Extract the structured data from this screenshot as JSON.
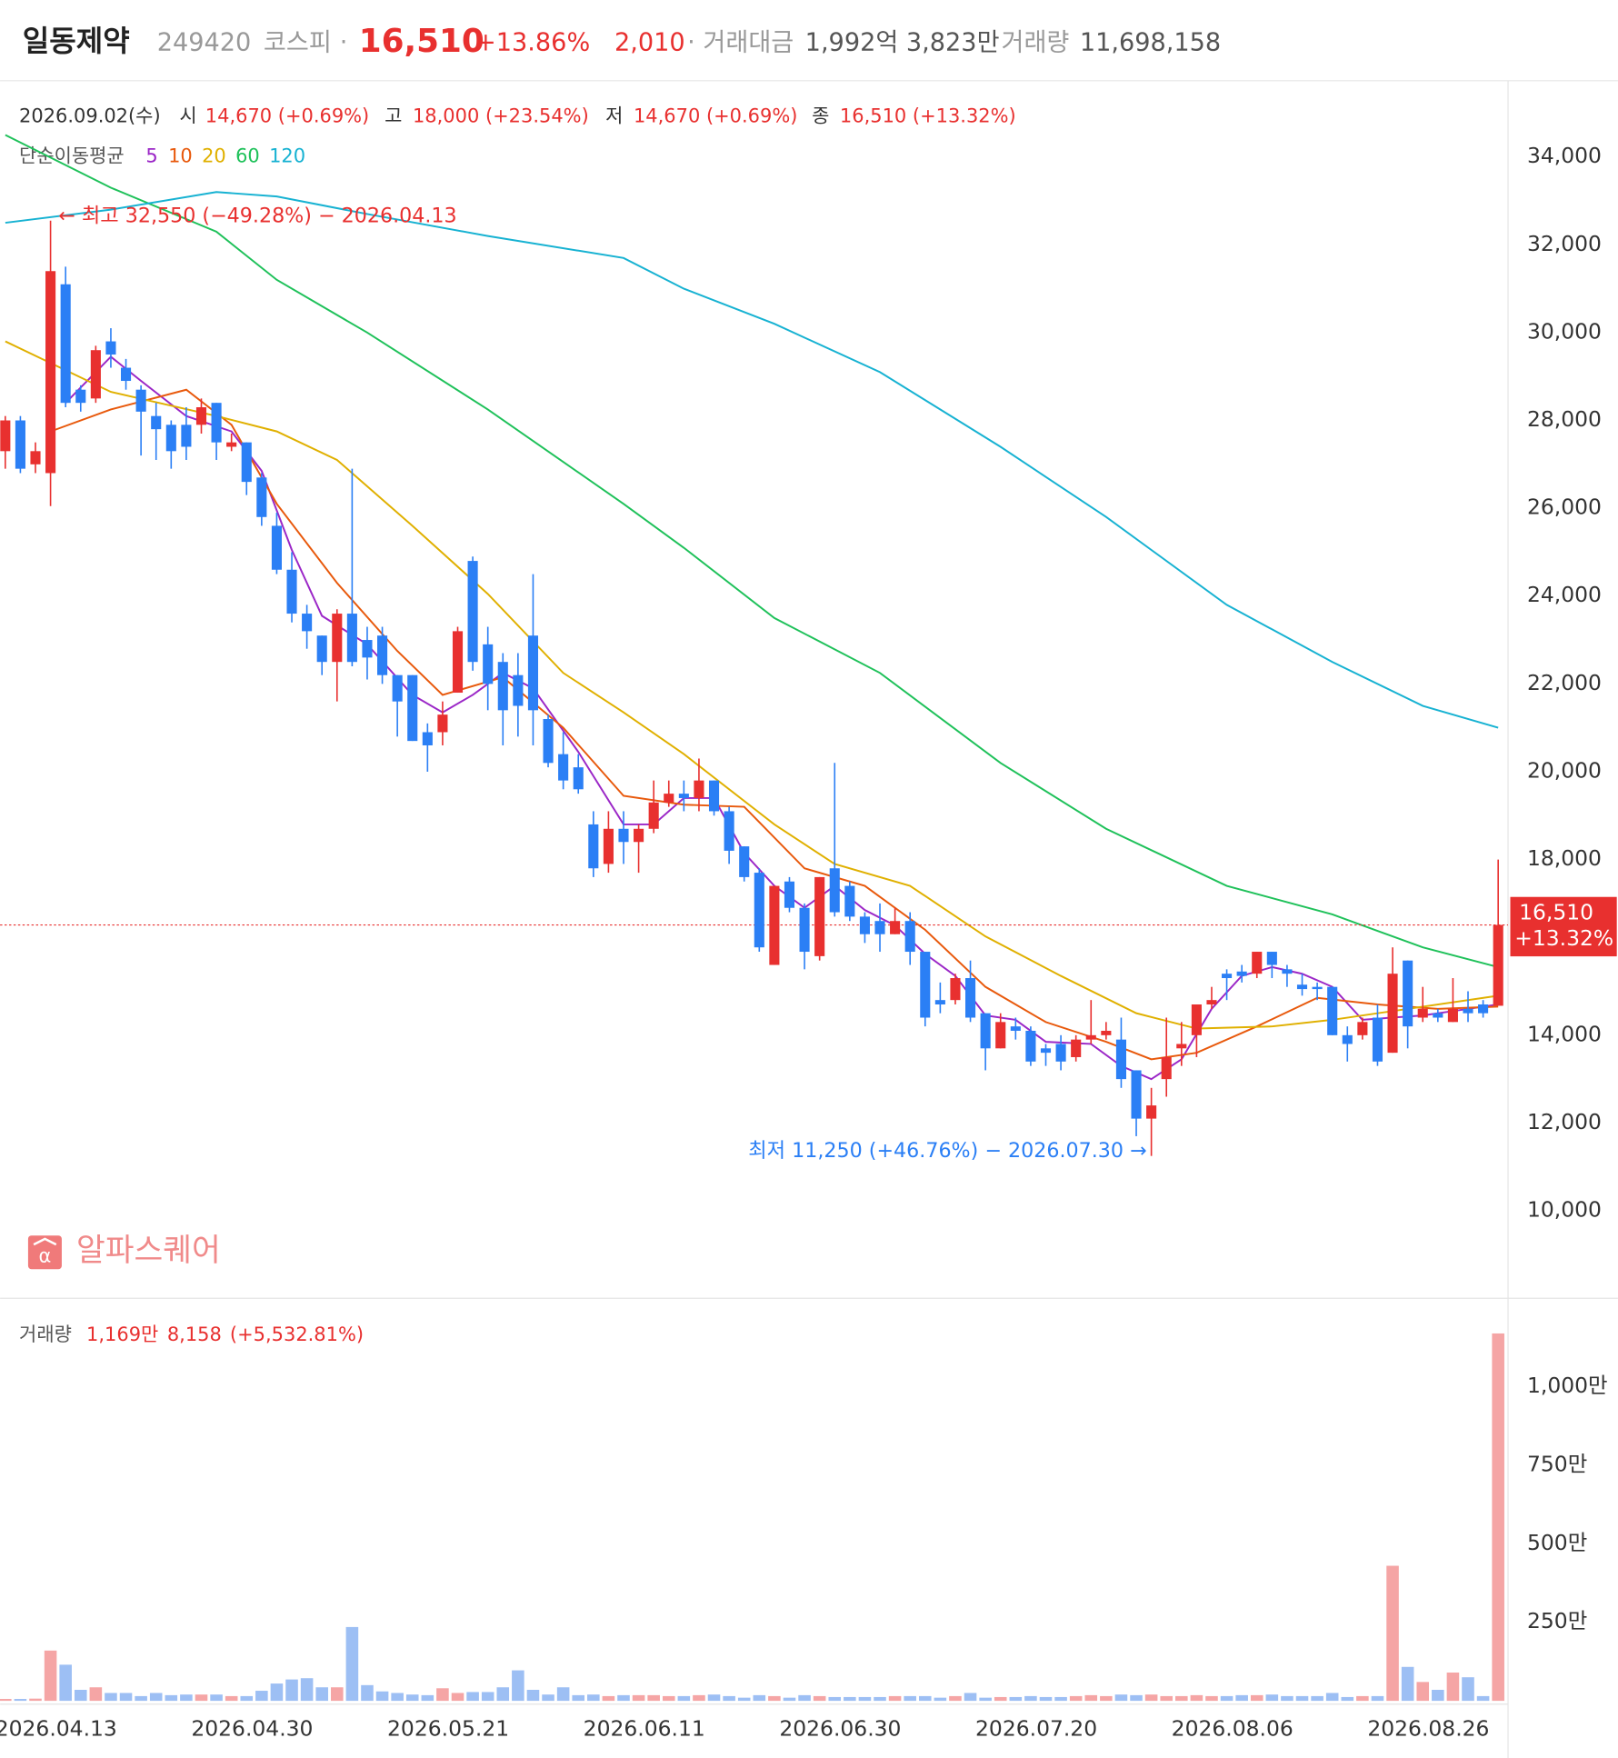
{
  "header": {
    "name": "일동제약",
    "code": "249420",
    "market": "코스피",
    "separator": "·",
    "price": "16,510",
    "change_pct": "+13.86%",
    "change": "2,010",
    "amount_label": "· 거래대금",
    "amount": "1,992억 3,823만",
    "volume_label": "거래량",
    "volume": "11,698,158"
  },
  "info": {
    "date": "2026.09.02(수)",
    "open_label": "시",
    "open": "14,670 (+0.69%)",
    "high_label": "고",
    "high": "18,000 (+23.54%)",
    "low_label": "저",
    "low": "14,670 (+0.69%)",
    "close_label": "종",
    "close": "16,510 (+13.32%)"
  },
  "watermark": "알파스퀘어",
  "chart_data": [
    {
      "type": "candlestick",
      "categories": [
        null,
        null,
        null,
        "2026.04.13",
        null,
        null,
        null,
        null,
        null,
        null,
        null,
        null,
        null,
        null,
        null,
        null,
        "2026.04.30",
        null,
        null,
        null,
        null,
        null,
        null,
        null,
        null,
        null,
        null,
        null,
        null,
        "2026.05.21",
        null,
        null,
        null,
        null,
        null,
        null,
        null,
        null,
        null,
        null,
        null,
        null,
        "2026.06.11",
        null,
        null,
        null,
        null,
        null,
        null,
        null,
        null,
        null,
        null,
        null,
        null,
        "2026.06.30",
        null,
        null,
        null,
        null,
        null,
        null,
        null,
        null,
        null,
        null,
        null,
        null,
        "2026.07.20",
        null,
        null,
        null,
        null,
        null,
        null,
        null,
        null,
        null,
        null,
        null,
        null,
        "2026.08.06",
        null,
        null,
        null,
        null,
        null,
        null,
        null,
        null,
        null,
        null,
        null,
        null,
        "2026.08.26",
        null,
        null,
        null,
        null,
        null
      ],
      "open": [
        27300,
        28000,
        27000,
        26800,
        31100,
        28700,
        28500,
        29800,
        29200,
        28700,
        28100,
        27900,
        27900,
        27900,
        28400,
        27400,
        27500,
        26700,
        25600,
        24600,
        23600,
        23100,
        22500,
        23600,
        23000,
        23100,
        22200,
        22200,
        20900,
        20900,
        21800,
        24800,
        22900,
        22500,
        22200,
        23100,
        21200,
        20400,
        20100,
        18800,
        17900,
        18700,
        18400,
        18700,
        19300,
        19500,
        19400,
        19800,
        19100,
        18300,
        17700,
        15600,
        17500,
        16900,
        15800,
        17800,
        17400,
        16700,
        16600,
        16300,
        16600,
        15900,
        14800,
        14800,
        15300,
        14500,
        13700,
        14200,
        14100,
        13700,
        13800,
        13500,
        13900,
        14000,
        13900,
        13200,
        12100,
        13000,
        13700,
        14000,
        14700,
        15400,
        15450,
        15400,
        15900,
        15500,
        15150,
        15100,
        15100,
        14000,
        14000,
        14400,
        13600,
        15700,
        14400,
        14500,
        14300,
        14600,
        14700,
        14670
      ],
      "high": [
        28100,
        28100,
        27500,
        32550,
        31500,
        28800,
        29700,
        30100,
        29400,
        28800,
        28400,
        28000,
        28300,
        28500,
        28400,
        27700,
        27500,
        26800,
        25900,
        25000,
        23800,
        23100,
        23700,
        26900,
        23300,
        23300,
        22200,
        22200,
        21100,
        21600,
        23300,
        24900,
        23300,
        22700,
        22700,
        24500,
        21300,
        20900,
        20400,
        19100,
        19100,
        19100,
        18800,
        19800,
        19800,
        19800,
        20300,
        19800,
        19200,
        18300,
        17800,
        17400,
        17600,
        17000,
        17600,
        20200,
        17500,
        16800,
        17000,
        16900,
        16800,
        15900,
        15200,
        15400,
        15700,
        14500,
        14500,
        14400,
        14200,
        13800,
        14000,
        14000,
        14800,
        14300,
        14400,
        13200,
        12800,
        14400,
        14300,
        14700,
        15100,
        15500,
        15600,
        15900,
        15900,
        15600,
        15400,
        15200,
        15100,
        14200,
        14400,
        14700,
        16000,
        15700,
        15100,
        14600,
        15300,
        15000,
        14800,
        18000
      ],
      "low": [
        26900,
        26800,
        26800,
        26050,
        28300,
        28200,
        28400,
        29200,
        28700,
        27200,
        27100,
        26900,
        27100,
        27700,
        27100,
        27300,
        26300,
        25600,
        24500,
        23400,
        22800,
        22200,
        21600,
        22400,
        22100,
        22000,
        20800,
        20700,
        20000,
        20600,
        21800,
        22300,
        21400,
        20600,
        20800,
        20600,
        20100,
        19600,
        19500,
        17600,
        17700,
        17900,
        17700,
        18600,
        19200,
        19100,
        19100,
        19000,
        17900,
        17500,
        15900,
        15600,
        16800,
        15500,
        15700,
        16700,
        16600,
        16100,
        15900,
        16300,
        15600,
        14200,
        14500,
        14700,
        14300,
        13200,
        13700,
        13900,
        13300,
        13300,
        13200,
        13400,
        13800,
        13900,
        12800,
        11700,
        11250,
        12600,
        13300,
        13500,
        14600,
        14800,
        15200,
        15300,
        15300,
        15100,
        14900,
        14800,
        14000,
        13400,
        13900,
        13300,
        13600,
        13700,
        14300,
        14300,
        14300,
        14300,
        14400,
        14670
      ],
      "close": [
        28000,
        26900,
        27300,
        31400,
        28400,
        28400,
        29600,
        29500,
        28900,
        28200,
        27800,
        27300,
        27400,
        28300,
        27500,
        27500,
        26600,
        25800,
        24600,
        23600,
        23200,
        22500,
        23600,
        22500,
        22600,
        22200,
        21600,
        20700,
        20600,
        21300,
        23200,
        22500,
        22000,
        21400,
        21500,
        21400,
        20200,
        19800,
        19600,
        17800,
        18700,
        18400,
        18700,
        19300,
        19500,
        19400,
        19800,
        19100,
        18200,
        17600,
        16000,
        17400,
        16900,
        15900,
        17600,
        16800,
        16700,
        16300,
        16300,
        16600,
        15900,
        14400,
        14700,
        15300,
        14400,
        13700,
        14300,
        14100,
        13400,
        13600,
        13400,
        13900,
        14000,
        14100,
        13000,
        12100,
        12400,
        13500,
        13800,
        14700,
        14800,
        15300,
        15350,
        15900,
        15600,
        15400,
        15050,
        15050,
        14000,
        13800,
        14300,
        13400,
        15400,
        14200,
        14600,
        14400,
        14600,
        14500,
        14500,
        16510
      ],
      "up_color": "#e8302f",
      "down_color": "#2b7ff5",
      "ylim": [
        8000,
        35700
      ],
      "yticks": [
        {
          "value": 10000,
          "label": "10,000"
        },
        {
          "value": 12000,
          "label": "12,000"
        },
        {
          "value": 14000,
          "label": "14,000"
        },
        {
          "value": 16000,
          "label": "16,000"
        },
        {
          "value": 18000,
          "label": "18,000"
        },
        {
          "value": 20000,
          "label": "20,000"
        },
        {
          "value": 22000,
          "label": "22,000"
        },
        {
          "value": 24000,
          "label": "24,000"
        },
        {
          "value": 26000,
          "label": "26,000"
        },
        {
          "value": 28000,
          "label": "28,000"
        },
        {
          "value": 30000,
          "label": "30,000"
        },
        {
          "value": 32000,
          "label": "32,000"
        },
        {
          "value": 34000,
          "label": "34,000"
        }
      ],
      "ma_title": "단순이동평균",
      "ma": [
        {
          "name": "5",
          "color": "#9b27c7",
          "x": [
            4,
            7,
            9,
            12,
            15,
            17,
            19,
            21,
            24,
            27,
            29,
            31,
            33,
            35,
            38,
            41,
            43,
            45,
            47,
            49,
            51,
            53,
            55,
            57,
            59,
            61,
            63,
            65,
            67,
            69,
            72,
            74,
            76,
            78,
            80,
            82,
            84,
            86,
            88,
            90,
            92,
            94,
            96,
            99
          ],
          "values": [
            28400,
            29450,
            28900,
            28100,
            27750,
            26850,
            25050,
            23550,
            22900,
            21750,
            21350,
            21750,
            22250,
            21900,
            20450,
            18800,
            18800,
            19400,
            19400,
            18150,
            17400,
            16900,
            17400,
            16850,
            16500,
            15850,
            15350,
            14450,
            14350,
            13850,
            13800,
            13300,
            13000,
            13450,
            14600,
            15350,
            15550,
            15400,
            15100,
            14350,
            14400,
            14450,
            14550,
            14700
          ]
        },
        {
          "name": "10",
          "color": "#e8590c",
          "x": [
            3,
            7,
            12,
            15,
            18,
            22,
            26,
            29,
            33,
            37,
            41,
            45,
            49,
            53,
            57,
            61,
            65,
            69,
            73,
            76,
            79,
            83,
            87,
            91,
            95,
            99
          ],
          "values": [
            27750,
            28250,
            28700,
            27900,
            26100,
            24300,
            22750,
            21750,
            22150,
            21000,
            19450,
            19250,
            19200,
            17800,
            17400,
            16400,
            15100,
            14300,
            13850,
            13450,
            13600,
            14200,
            14850,
            14700,
            14600,
            14650
          ]
        },
        {
          "name": "20",
          "color": "#e0b000",
          "x": [
            0,
            7,
            14,
            18,
            22,
            27,
            32,
            37,
            41,
            45,
            51,
            55,
            60,
            65,
            70,
            75,
            79,
            84,
            88,
            92,
            99
          ],
          "values": [
            29800,
            28650,
            28100,
            27750,
            27100,
            25600,
            24050,
            22250,
            21350,
            20400,
            18800,
            17900,
            17400,
            16250,
            15350,
            14500,
            14150,
            14200,
            14350,
            14550,
            14900
          ]
        },
        {
          "name": "60",
          "color": "#1fc15a",
          "x": [
            0,
            7,
            14,
            18,
            24,
            32,
            41,
            45,
            51,
            58,
            66,
            73,
            81,
            88,
            94,
            99
          ],
          "values": [
            34500,
            33300,
            32300,
            31200,
            30000,
            28250,
            26100,
            25100,
            23500,
            22250,
            20200,
            18700,
            17400,
            16750,
            16000,
            15550
          ]
        },
        {
          "name": "120",
          "color": "#17b2d2",
          "x": [
            0,
            7,
            14,
            18,
            24,
            32,
            41,
            45,
            51,
            58,
            66,
            73,
            81,
            88,
            94,
            99
          ],
          "values": [
            32500,
            32800,
            33200,
            33100,
            32700,
            32200,
            31700,
            31000,
            30200,
            29100,
            27400,
            25800,
            23800,
            22500,
            21500,
            21000
          ]
        }
      ],
      "annotations": [
        {
          "text": "← 최고 32,550 (−49.28%) − 2026.04.13",
          "color": "#e8302f"
        },
        {
          "text": "최저 11,250 (+46.76%) − 2026.07.30 →",
          "color": "#2b7ff5"
        }
      ],
      "last_price": {
        "value": 16510,
        "label": "16,510"
      },
      "last_change": "+13.32%"
    },
    {
      "type": "bar",
      "title": "거래량",
      "current": "1,169만",
      "previous": "8,158",
      "change": "(+5,532.81%)",
      "values": [
        60000,
        60000,
        70000,
        1600000,
        1150000,
        350000,
        430000,
        250000,
        250000,
        150000,
        250000,
        180000,
        200000,
        200000,
        200000,
        150000,
        150000,
        320000,
        550000,
        680000,
        720000,
        430000,
        430000,
        2350000,
        500000,
        300000,
        250000,
        200000,
        180000,
        400000,
        250000,
        280000,
        280000,
        430000,
        970000,
        350000,
        200000,
        430000,
        180000,
        200000,
        150000,
        180000,
        180000,
        180000,
        150000,
        150000,
        180000,
        200000,
        150000,
        100000,
        180000,
        150000,
        100000,
        180000,
        150000,
        120000,
        120000,
        120000,
        120000,
        150000,
        150000,
        150000,
        100000,
        150000,
        250000,
        100000,
        120000,
        120000,
        150000,
        120000,
        120000,
        150000,
        180000,
        150000,
        200000,
        180000,
        200000,
        150000,
        150000,
        180000,
        150000,
        150000,
        180000,
        180000,
        200000,
        150000,
        150000,
        150000,
        250000,
        120000,
        150000,
        150000,
        4300000,
        1080000,
        600000,
        350000,
        900000,
        750000,
        150000,
        11698158
      ],
      "up_color": "#f5a5a5",
      "down_color": "#9dbff4",
      "ylim": [
        0,
        12210000
      ],
      "yticks": [
        {
          "value": 2500000,
          "label": "250만"
        },
        {
          "value": 5000000,
          "label": "500만"
        },
        {
          "value": 7500000,
          "label": "750만"
        },
        {
          "value": 10000000,
          "label": "1,000만"
        }
      ]
    }
  ]
}
